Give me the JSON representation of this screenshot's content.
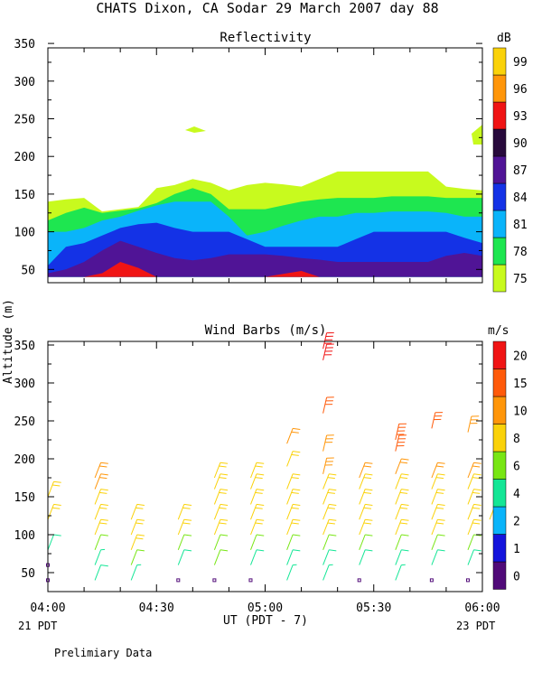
{
  "header": {
    "title": "CHATS Dixon, CA   Sodar  29 March 2007   day  88"
  },
  "y_axis_label": "Altitude (m)",
  "x_axis": {
    "ticks": [
      "04:00",
      "04:30",
      "05:00",
      "05:30",
      "06:00"
    ],
    "label": "UT  (PDT - 7)",
    "left_date": "21 PDT",
    "right_date": "23 PDT"
  },
  "footnote": "Prelimiary Data",
  "colors": {
    "reflectivity": [
      "#c8fa1e",
      "#1ee650",
      "#0ab4fa",
      "#1432e6",
      "#501496",
      "#280a3c",
      "#f01414",
      "#ff960a",
      "#fad20a"
    ],
    "wind": [
      "#500a78",
      "#1414dc",
      "#0ab4fa",
      "#14e696",
      "#78e614",
      "#fad20a",
      "#ff960a",
      "#ff5a0a",
      "#f01414"
    ]
  },
  "chart_data": [
    {
      "type": "area",
      "title": "Reflectivity",
      "ylim": [
        30,
        350
      ],
      "yticks": [
        "350",
        "300",
        "250",
        "200",
        "150",
        "100",
        "50"
      ],
      "x_range": [
        "04:00",
        "06:00"
      ],
      "colorbar": {
        "unit": "dB",
        "labels": [
          "99",
          "96",
          "93",
          "90",
          "87",
          "84",
          "81",
          "78",
          "75"
        ]
      },
      "x_minutes": [
        0,
        5,
        10,
        15,
        20,
        25,
        30,
        35,
        40,
        45,
        50,
        55,
        60,
        65,
        70,
        75,
        80,
        85,
        90,
        95,
        100,
        105,
        110,
        115,
        120
      ],
      "layers": [
        {
          "level": "75",
          "bottom": [
            40,
            40,
            40,
            40,
            40,
            40,
            40,
            40,
            40,
            40,
            40,
            40,
            40,
            40,
            40,
            40,
            40,
            40,
            40,
            40,
            40,
            40,
            40,
            40,
            40
          ],
          "top": [
            140,
            143,
            145,
            127,
            130,
            133,
            158,
            162,
            170,
            165,
            155,
            162,
            165,
            163,
            160,
            170,
            180,
            180,
            180,
            180,
            180,
            180,
            160,
            157,
            155
          ]
        },
        {
          "level": "78",
          "bottom": [
            40,
            40,
            40,
            40,
            40,
            40,
            40,
            40,
            40,
            40,
            40,
            40,
            40,
            40,
            40,
            40,
            40,
            40,
            40,
            40,
            40,
            40,
            40,
            40,
            40
          ],
          "top": [
            115,
            125,
            132,
            125,
            128,
            131,
            138,
            150,
            158,
            150,
            130,
            130,
            130,
            135,
            140,
            143,
            145,
            145,
            145,
            147,
            147,
            147,
            145,
            145,
            145
          ]
        },
        {
          "level": "81",
          "bottom": [
            40,
            40,
            40,
            40,
            40,
            40,
            40,
            40,
            40,
            40,
            40,
            40,
            40,
            40,
            40,
            40,
            40,
            40,
            40,
            40,
            40,
            40,
            40,
            40,
            40
          ],
          "top": [
            100,
            100,
            105,
            115,
            120,
            128,
            135,
            140,
            140,
            140,
            120,
            95,
            100,
            108,
            115,
            120,
            120,
            125,
            125,
            127,
            127,
            127,
            125,
            120,
            120
          ]
        },
        {
          "level": "84",
          "bottom": [
            40,
            40,
            40,
            40,
            40,
            40,
            40,
            40,
            40,
            40,
            40,
            40,
            40,
            40,
            40,
            40,
            40,
            40,
            40,
            40,
            40,
            40,
            40,
            40,
            40
          ],
          "top": [
            55,
            80,
            85,
            95,
            105,
            110,
            112,
            105,
            100,
            100,
            100,
            90,
            80,
            80,
            80,
            80,
            80,
            90,
            100,
            100,
            100,
            100,
            100,
            92,
            85
          ]
        },
        {
          "level": "87",
          "bottom": [
            40,
            40,
            40,
            40,
            40,
            40,
            40,
            40,
            40,
            40,
            40,
            40,
            40,
            40,
            40,
            40,
            40,
            40,
            40,
            40,
            40,
            40,
            40,
            40,
            40
          ],
          "top": [
            45,
            50,
            60,
            75,
            88,
            80,
            72,
            65,
            62,
            65,
            70,
            70,
            70,
            68,
            65,
            63,
            60,
            60,
            60,
            60,
            60,
            60,
            68,
            72,
            68
          ]
        },
        {
          "level": "93",
          "bottom": [
            40,
            40,
            40,
            40,
            40,
            40,
            40,
            40,
            40,
            40,
            40,
            40,
            40,
            40,
            40,
            40,
            40,
            40,
            40,
            40,
            40,
            40,
            40,
            40,
            40
          ],
          "top": [
            40,
            40,
            40,
            45,
            60,
            52,
            40,
            40,
            40,
            40,
            40,
            40,
            40,
            44,
            48,
            40,
            40,
            40,
            40,
            40,
            40,
            40,
            40,
            40,
            40
          ]
        }
      ]
    },
    {
      "type": "scatter",
      "title": "Wind Barbs (m/s)",
      "ylim": [
        20,
        350
      ],
      "yticks": [
        "350",
        "300",
        "250",
        "200",
        "150",
        "100",
        "50"
      ],
      "x_range": [
        "04:00",
        "06:00"
      ],
      "colorbar": {
        "unit": "m/s",
        "labels": [
          "20",
          "15",
          "10",
          "8",
          "6",
          "4",
          "2",
          "1",
          "0"
        ]
      },
      "barbs": [
        {
          "x": 0,
          "alt": 40,
          "speed": 0
        },
        {
          "x": 0,
          "alt": 60,
          "speed": 0.5
        },
        {
          "x": 0,
          "alt": 80,
          "speed": 5
        },
        {
          "x": 0,
          "alt": 120,
          "speed": 9
        },
        {
          "x": 0,
          "alt": 150,
          "speed": 9
        },
        {
          "x": 13,
          "alt": 40,
          "speed": 5
        },
        {
          "x": 13,
          "alt": 60,
          "speed": 4
        },
        {
          "x": 13,
          "alt": 80,
          "speed": 6
        },
        {
          "x": 13,
          "alt": 100,
          "speed": 9
        },
        {
          "x": 13,
          "alt": 120,
          "speed": 9
        },
        {
          "x": 13,
          "alt": 140,
          "speed": 9
        },
        {
          "x": 13,
          "alt": 160,
          "speed": 10
        },
        {
          "x": 13,
          "alt": 175,
          "speed": 10
        },
        {
          "x": 23,
          "alt": 40,
          "speed": 4
        },
        {
          "x": 23,
          "alt": 60,
          "speed": 6
        },
        {
          "x": 23,
          "alt": 80,
          "speed": 8
        },
        {
          "x": 23,
          "alt": 100,
          "speed": 9
        },
        {
          "x": 23,
          "alt": 120,
          "speed": 9
        },
        {
          "x": 36,
          "alt": 40,
          "speed": 0
        },
        {
          "x": 36,
          "alt": 60,
          "speed": 5
        },
        {
          "x": 36,
          "alt": 80,
          "speed": 6
        },
        {
          "x": 36,
          "alt": 100,
          "speed": 9
        },
        {
          "x": 36,
          "alt": 120,
          "speed": 9
        },
        {
          "x": 46,
          "alt": 40,
          "speed": 0
        },
        {
          "x": 46,
          "alt": 60,
          "speed": 6
        },
        {
          "x": 46,
          "alt": 80,
          "speed": 7
        },
        {
          "x": 46,
          "alt": 100,
          "speed": 9
        },
        {
          "x": 46,
          "alt": 120,
          "speed": 9
        },
        {
          "x": 46,
          "alt": 140,
          "speed": 9
        },
        {
          "x": 46,
          "alt": 160,
          "speed": 9
        },
        {
          "x": 46,
          "alt": 175,
          "speed": 9
        },
        {
          "x": 56,
          "alt": 40,
          "speed": 0
        },
        {
          "x": 56,
          "alt": 60,
          "speed": 5
        },
        {
          "x": 56,
          "alt": 80,
          "speed": 7
        },
        {
          "x": 56,
          "alt": 100,
          "speed": 9
        },
        {
          "x": 56,
          "alt": 120,
          "speed": 9
        },
        {
          "x": 56,
          "alt": 140,
          "speed": 9
        },
        {
          "x": 56,
          "alt": 160,
          "speed": 9
        },
        {
          "x": 56,
          "alt": 175,
          "speed": 9
        },
        {
          "x": 66,
          "alt": 40,
          "speed": 4
        },
        {
          "x": 66,
          "alt": 60,
          "speed": 5
        },
        {
          "x": 66,
          "alt": 80,
          "speed": 6
        },
        {
          "x": 66,
          "alt": 100,
          "speed": 9
        },
        {
          "x": 66,
          "alt": 120,
          "speed": 9
        },
        {
          "x": 66,
          "alt": 140,
          "speed": 9
        },
        {
          "x": 66,
          "alt": 160,
          "speed": 9
        },
        {
          "x": 66,
          "alt": 190,
          "speed": 9
        },
        {
          "x": 66,
          "alt": 220,
          "speed": 11
        },
        {
          "x": 76,
          "alt": 40,
          "speed": 4
        },
        {
          "x": 76,
          "alt": 60,
          "speed": 5
        },
        {
          "x": 76,
          "alt": 80,
          "speed": 6
        },
        {
          "x": 76,
          "alt": 100,
          "speed": 9
        },
        {
          "x": 76,
          "alt": 120,
          "speed": 9
        },
        {
          "x": 76,
          "alt": 140,
          "speed": 9
        },
        {
          "x": 76,
          "alt": 160,
          "speed": 9
        },
        {
          "x": 76,
          "alt": 180,
          "speed": 13
        },
        {
          "x": 76,
          "alt": 210,
          "speed": 13
        },
        {
          "x": 76,
          "alt": 260,
          "speed": 17
        },
        {
          "x": 76,
          "alt": 330,
          "speed": 21
        },
        {
          "x": 76,
          "alt": 345,
          "speed": 21
        },
        {
          "x": 86,
          "alt": 40,
          "speed": 0
        },
        {
          "x": 86,
          "alt": 60,
          "speed": 5
        },
        {
          "x": 86,
          "alt": 80,
          "speed": 6
        },
        {
          "x": 86,
          "alt": 100,
          "speed": 9
        },
        {
          "x": 86,
          "alt": 120,
          "speed": 9
        },
        {
          "x": 86,
          "alt": 140,
          "speed": 9
        },
        {
          "x": 86,
          "alt": 160,
          "speed": 9
        },
        {
          "x": 86,
          "alt": 175,
          "speed": 10
        },
        {
          "x": 96,
          "alt": 40,
          "speed": 4
        },
        {
          "x": 96,
          "alt": 60,
          "speed": 5
        },
        {
          "x": 96,
          "alt": 80,
          "speed": 6
        },
        {
          "x": 96,
          "alt": 100,
          "speed": 9
        },
        {
          "x": 96,
          "alt": 120,
          "speed": 9
        },
        {
          "x": 96,
          "alt": 140,
          "speed": 9
        },
        {
          "x": 96,
          "alt": 160,
          "speed": 9
        },
        {
          "x": 96,
          "alt": 180,
          "speed": 10
        },
        {
          "x": 96,
          "alt": 210,
          "speed": 18
        },
        {
          "x": 96,
          "alt": 225,
          "speed": 18
        },
        {
          "x": 106,
          "alt": 40,
          "speed": 0
        },
        {
          "x": 106,
          "alt": 60,
          "speed": 5
        },
        {
          "x": 106,
          "alt": 80,
          "speed": 6
        },
        {
          "x": 106,
          "alt": 100,
          "speed": 9
        },
        {
          "x": 106,
          "alt": 120,
          "speed": 9
        },
        {
          "x": 106,
          "alt": 140,
          "speed": 9
        },
        {
          "x": 106,
          "alt": 160,
          "speed": 9
        },
        {
          "x": 106,
          "alt": 175,
          "speed": 10
        },
        {
          "x": 106,
          "alt": 240,
          "speed": 17
        },
        {
          "x": 116,
          "alt": 40,
          "speed": 0
        },
        {
          "x": 116,
          "alt": 60,
          "speed": 5
        },
        {
          "x": 116,
          "alt": 80,
          "speed": 6
        },
        {
          "x": 116,
          "alt": 100,
          "speed": 9
        },
        {
          "x": 116,
          "alt": 120,
          "speed": 9
        },
        {
          "x": 116,
          "alt": 140,
          "speed": 9
        },
        {
          "x": 116,
          "alt": 160,
          "speed": 9
        },
        {
          "x": 116,
          "alt": 175,
          "speed": 10
        },
        {
          "x": 116,
          "alt": 235,
          "speed": 14
        },
        {
          "x": 122,
          "alt": 120,
          "speed": 8
        }
      ]
    }
  ]
}
